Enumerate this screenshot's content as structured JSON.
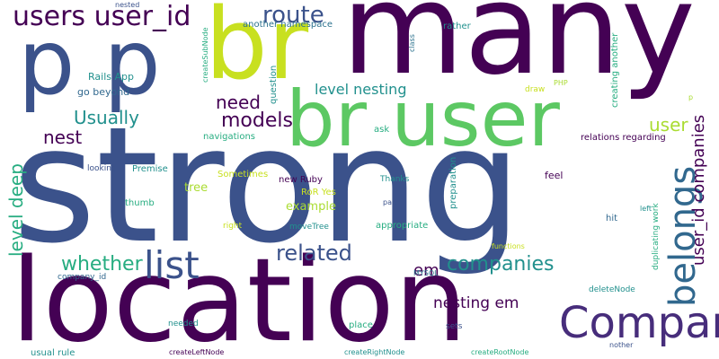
{
  "palette": {
    "dark_purple": "#440154",
    "indigo": "#3b528b",
    "slate_blue": "#31688e",
    "teal_blue": "#2c728e",
    "teal": "#21908d",
    "sea_green": "#27ad81",
    "green": "#5cc863",
    "lime": "#aadc32",
    "yellow_green": "#c8e020",
    "background": "#ffffff"
  },
  "words": [
    "strong",
    "location",
    "many",
    "br user",
    "p p",
    "br",
    "Company",
    "belongs",
    "users user_id",
    "list",
    "route",
    "user_id companies",
    "companies",
    "related",
    "whether",
    "level deep",
    "models",
    "Usually",
    "need",
    "level nesting",
    "user",
    "nesting em",
    "em",
    "nest",
    "Rails App",
    "go beyond",
    "example",
    "tree",
    "another namespace",
    "question",
    "createSubNode",
    "nested",
    "rather",
    "class",
    "creating another",
    "relations regarding",
    "duplicating work",
    "preparation",
    "Sometimes",
    "Premise",
    "RoR Yes",
    "new Ruby",
    "navigations",
    "looking",
    "thumb",
    "right",
    "moveTree",
    "appropriate",
    "MYSQL",
    "company_id",
    "deleteNode",
    "needed",
    "place",
    "sets",
    "usual rule",
    "createLeftNode",
    "createRightNode",
    "createRootNode",
    "nother",
    "functions",
    "left",
    "hit",
    "part",
    "Thanks",
    "feel",
    "ask",
    "draw",
    "PHP",
    "p"
  ]
}
